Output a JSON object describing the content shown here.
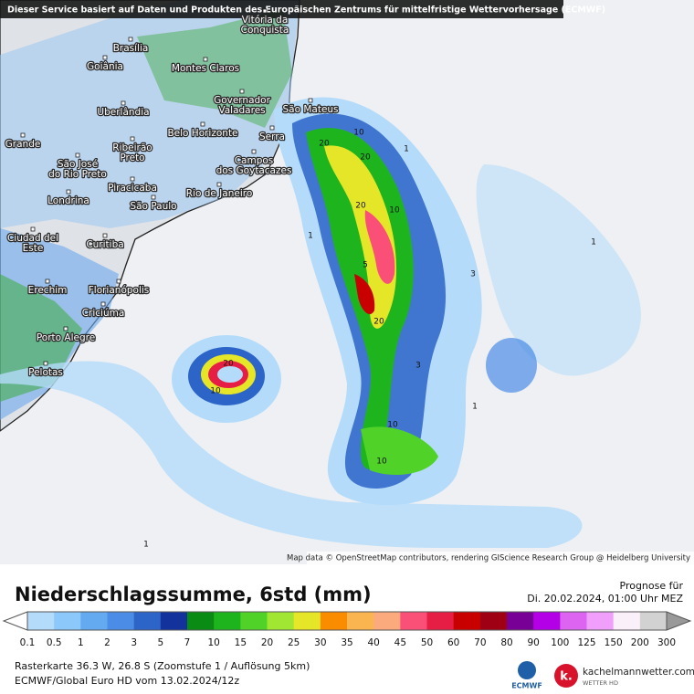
{
  "header": {
    "disclaimer": "Dieser Service basiert auf Daten und Produkten des Europäischen Zentrums für mittelfristige Wettervorhersage (ECMWF)"
  },
  "map": {
    "cities": [
      {
        "lines": [
          "Brasília"
        ]
      },
      {
        "lines": [
          "Goiânia"
        ]
      },
      {
        "lines": [
          "Montes Claros"
        ]
      },
      {
        "lines": [
          "Vitória da",
          "Conquista"
        ]
      },
      {
        "lines": [
          "Uberlândia"
        ]
      },
      {
        "lines": [
          "Governador",
          "Valadares"
        ]
      },
      {
        "lines": [
          "São Mateus"
        ]
      },
      {
        "lines": [
          "Belo Horizonte"
        ]
      },
      {
        "lines": [
          "Serra"
        ]
      },
      {
        "lines": [
          "Grande"
        ]
      },
      {
        "lines": [
          "Ribeirão",
          "Preto"
        ]
      },
      {
        "lines": [
          "São José",
          "do Rio Preto"
        ]
      },
      {
        "lines": [
          "Campos",
          "dos Goytacazes"
        ]
      },
      {
        "lines": [
          "Piracicaba"
        ]
      },
      {
        "lines": [
          "Rio de Janeiro"
        ]
      },
      {
        "lines": [
          "São Paulo"
        ]
      },
      {
        "lines": [
          "Londrina"
        ]
      },
      {
        "lines": [
          "Ciudad del",
          "Este"
        ]
      },
      {
        "lines": [
          "Curitiba"
        ]
      },
      {
        "lines": [
          "Erechim"
        ]
      },
      {
        "lines": [
          "Florianópolis"
        ]
      },
      {
        "lines": [
          "Criciúma"
        ]
      },
      {
        "lines": [
          "Porto Alegre"
        ]
      },
      {
        "lines": [
          "Pelotas"
        ]
      }
    ],
    "contour_labels": [
      "20",
      "10",
      "20",
      "20",
      "10",
      "5",
      "20",
      "10",
      "3",
      "1",
      "1",
      "20",
      "10",
      "10",
      "1",
      "1",
      "3",
      "1"
    ],
    "attribution": "Map data © OpenStreetMap contributors, rendering GIScience Research Group @ Heidelberg University"
  },
  "legend": {
    "title": "Niederschlagssumme, 6std (mm)",
    "forecast_label": "Prognose für",
    "forecast_time": "Di. 20.02.2024, 01:00 Uhr MEZ",
    "scale_labels": [
      "0.1",
      "0.5",
      "1",
      "2",
      "3",
      "5",
      "7",
      "10",
      "15",
      "20",
      "25",
      "30",
      "35",
      "40",
      "45",
      "50",
      "60",
      "70",
      "80",
      "90",
      "100",
      "125",
      "150",
      "200",
      "300"
    ],
    "scale_colors": [
      "#b4dcfa",
      "#8cc8fa",
      "#64aaf0",
      "#4b8ce6",
      "#2d64c8",
      "#14329b",
      "#0a8c14",
      "#1eb41e",
      "#50d228",
      "#a0e632",
      "#e6e628",
      "#fa8c00",
      "#fab450",
      "#faaa7d",
      "#fa5078",
      "#e61e46",
      "#c80000",
      "#a00014",
      "#780096",
      "#b400e6",
      "#dc64f0",
      "#f0a0fa",
      "#faf0fa",
      "#d2d2d2"
    ]
  },
  "footer": {
    "info": "Rasterkarte 36.3 W, 26.8 S (Zoomstufe 1 / Auflösung 5km)",
    "model": "ECMWF/Global Euro HD vom 13.02.2024/12z",
    "ecmwf": "ECMWF",
    "brand": "kachelmannwetter.com",
    "brand_sub": "WETTER HD",
    "logo_letter": "k."
  }
}
